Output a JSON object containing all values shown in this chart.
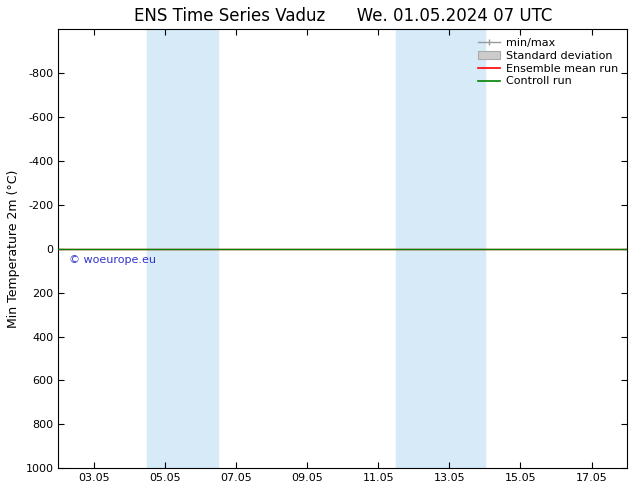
{
  "title": "ENS Time Series Vaduz      We. 01.05.2024 07 UTC",
  "ylabel": "Min Temperature 2m (°C)",
  "ylim_bottom": -1000,
  "ylim_top": 1000,
  "yticks": [
    -800,
    -600,
    -400,
    -200,
    0,
    200,
    400,
    600,
    800,
    1000
  ],
  "xticks_labels": [
    "03.05",
    "05.05",
    "07.05",
    "09.05",
    "11.05",
    "13.05",
    "15.05",
    "17.05"
  ],
  "xticks_pos": [
    2,
    4,
    6,
    8,
    10,
    12,
    14,
    16
  ],
  "xlim": [
    1,
    17
  ],
  "shaded_regions": [
    [
      3.5,
      5.0
    ],
    [
      5.0,
      5.5
    ],
    [
      10.5,
      11.5
    ],
    [
      11.5,
      13.0
    ]
  ],
  "shaded_color": "#d6eaf8",
  "control_run_y": 0.0,
  "control_run_color": "#008000",
  "ensemble_mean_color": "#ff0000",
  "minmax_color": "#999999",
  "stddev_facecolor": "#cccccc",
  "stddev_edgecolor": "#aaaaaa",
  "watermark": "© woeurope.eu",
  "watermark_color": "#3333cc",
  "background_color": "#ffffff",
  "title_fontsize": 12,
  "axis_label_fontsize": 9,
  "tick_fontsize": 8,
  "legend_fontsize": 8
}
